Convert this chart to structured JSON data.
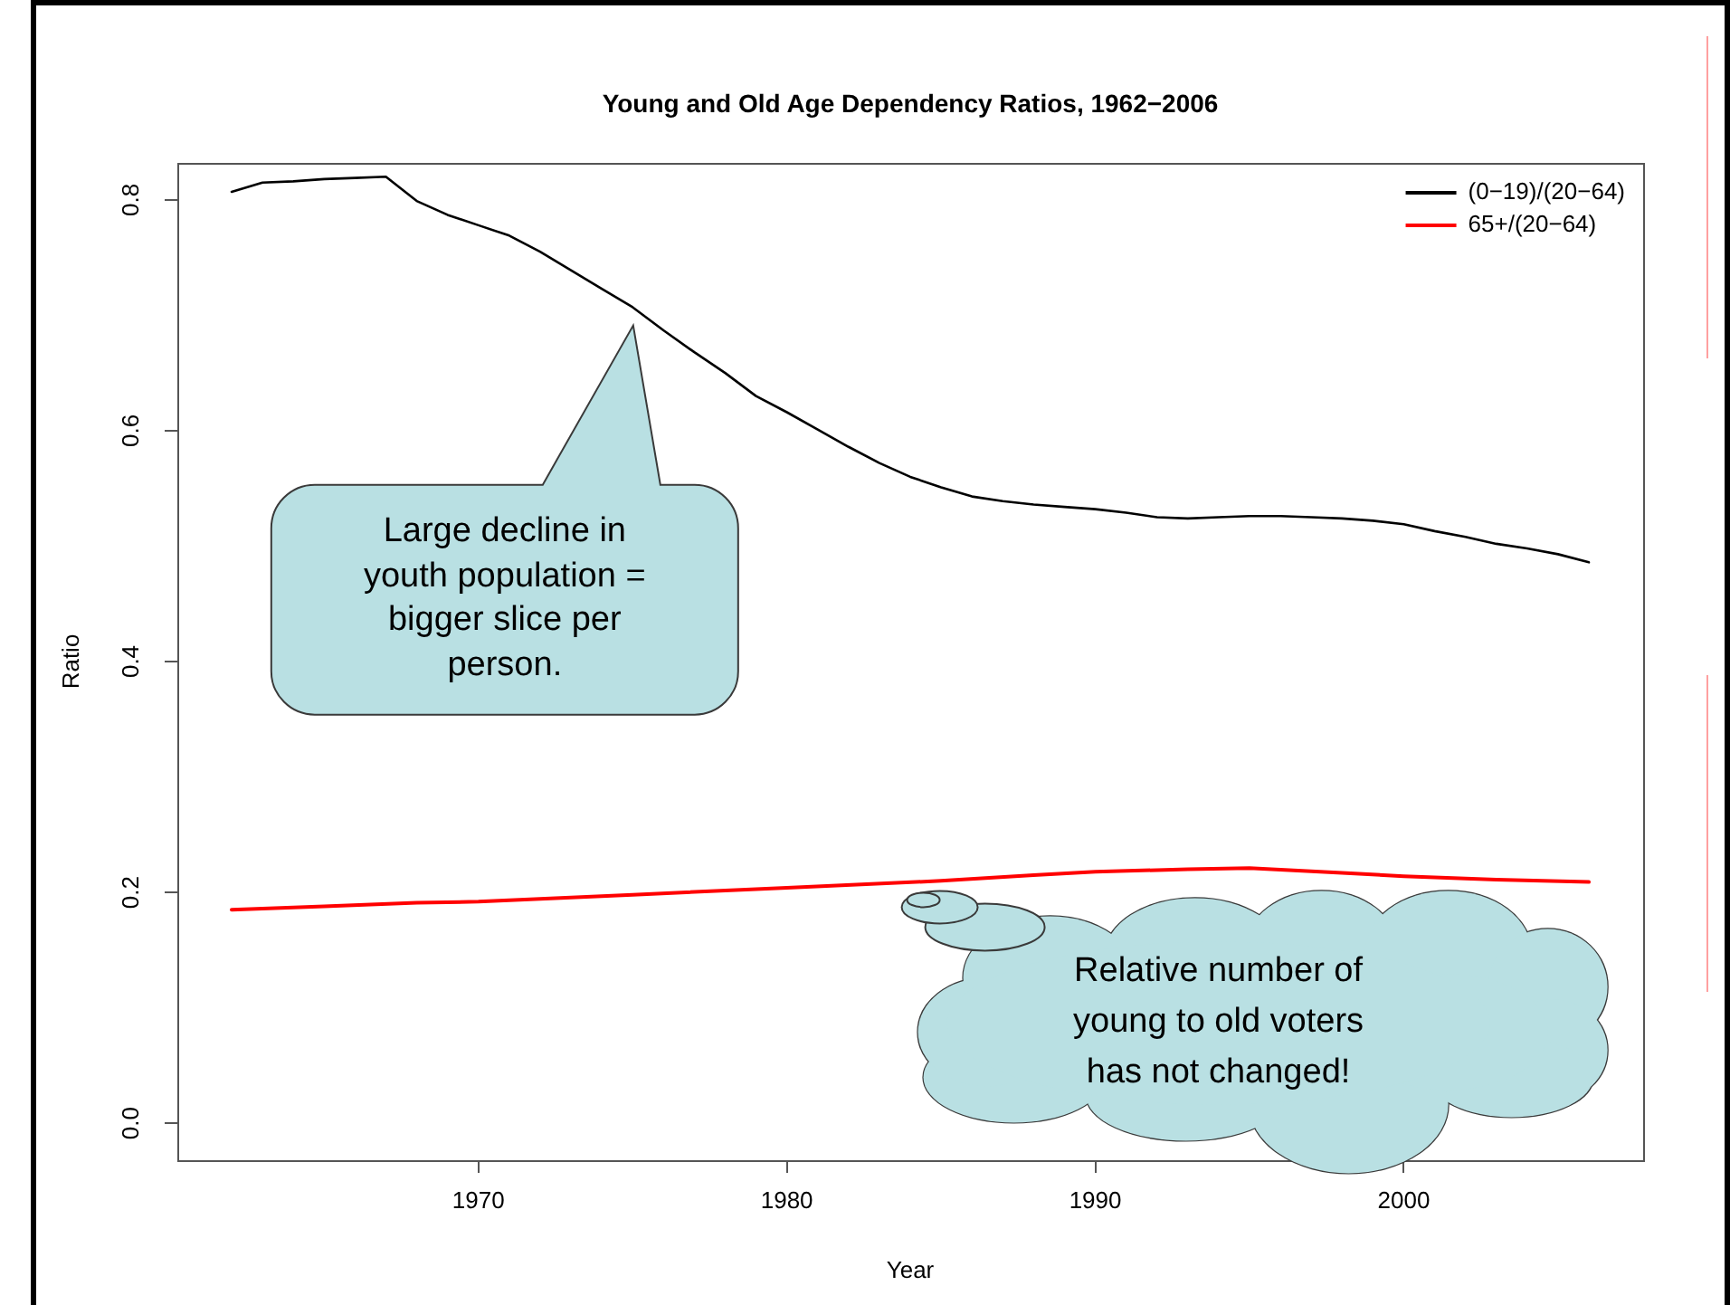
{
  "chart_data": {
    "type": "line",
    "title": "Young and Old Age Dependency Ratios, 1962−2006",
    "xlabel": "Year",
    "ylabel": "Ratio",
    "xlim": [
      1960.24,
      2007.76
    ],
    "xticks": [
      1970,
      1980,
      1990,
      2000
    ],
    "ylim": [
      -0.032,
      0.832
    ],
    "yticks": [
      {
        "value": 0,
        "label": "0.0"
      },
      0.2,
      0.4,
      0.6,
      0.8
    ],
    "grid": false,
    "legend": "top right",
    "marker": "none",
    "line_style": "solid",
    "series": [
      {
        "name": "(0−19)/(20−64)",
        "color": "#000000",
        "x": [
          1962,
          1963,
          1964,
          1965,
          1966,
          1967,
          1968,
          1969,
          1970,
          1971,
          1972,
          1973,
          1974,
          1975,
          1976,
          1977,
          1978,
          1979,
          1980,
          1981,
          1982,
          1983,
          1984,
          1985,
          1986,
          1987,
          1988,
          1989,
          1990,
          1991,
          1992,
          1993,
          1994,
          1995,
          1996,
          1997,
          1998,
          1999,
          2000,
          2001,
          2002,
          2003,
          2004,
          2005,
          2006
        ],
        "values": [
          0.807,
          0.815,
          0.816,
          0.818,
          0.819,
          0.82,
          0.799,
          0.787,
          0.778,
          0.769,
          0.755,
          0.739,
          0.723,
          0.707,
          0.687,
          0.668,
          0.65,
          0.63,
          0.616,
          0.601,
          0.586,
          0.572,
          0.56,
          0.551,
          0.543,
          0.539,
          0.536,
          0.534,
          0.532,
          0.529,
          0.525,
          0.524,
          0.525,
          0.526,
          0.526,
          0.525,
          0.524,
          0.522,
          0.519,
          0.513,
          0.508,
          0.502,
          0.498,
          0.493,
          0.486
        ]
      },
      {
        "name": "65+/(20−64)",
        "color": "#ff0000",
        "x": [
          1962,
          1965,
          1968,
          1970,
          1975,
          1980,
          1985,
          1988,
          1990,
          1993,
          1995,
          1998,
          2000,
          2003,
          2006
        ],
        "values": [
          0.185,
          0.188,
          0.191,
          0.192,
          0.198,
          0.204,
          0.21,
          0.215,
          0.218,
          0.22,
          0.221,
          0.217,
          0.214,
          0.211,
          0.209
        ]
      }
    ],
    "annotations": [
      "Large decline in youth population = bigger slice per person.",
      "Relative number of young to old voters has not changed!"
    ]
  }
}
